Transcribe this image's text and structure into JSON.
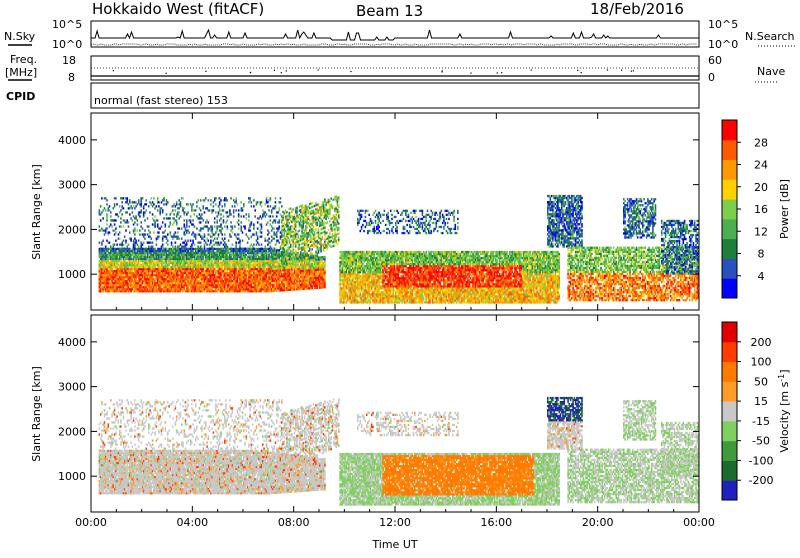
{
  "header": {
    "station": "Hokkaido West (fitACF)",
    "beam": "Beam 13",
    "date": "18/Feb/2016"
  },
  "strip": {
    "nsky_label": "N.Sky",
    "nsky_ticks": [
      "10^5",
      "10^0"
    ],
    "nsearch_label": "N.Search",
    "nsearch_ticks": [
      "10^5",
      "10^0"
    ],
    "freq_label_1": "Freq.",
    "freq_label_2": "[MHz]",
    "freq_ticks": [
      "18",
      "8"
    ],
    "nave_label": "Nave",
    "nave_ticks": [
      "60",
      "0"
    ],
    "cpid_label": "CPID",
    "cpid_text": "normal (fast stereo) 153"
  },
  "chart_data": [
    {
      "type": "heatmap",
      "name": "power",
      "ylabel": "Slant Range [km]",
      "xlabel": "Time UT",
      "x_range_hours": [
        0,
        24
      ],
      "y_range_km": [
        200,
        4600
      ],
      "y_ticks": [
        "4000",
        "3000",
        "2000",
        "1000"
      ],
      "x_ticks": [
        "00:00",
        "04:00",
        "08:00",
        "12:00",
        "16:00",
        "20:00",
        "00:00"
      ],
      "colorbar": {
        "label": "Power [dB]",
        "ticks": [
          "28",
          "24",
          "20",
          "16",
          "12",
          "8",
          "4"
        ],
        "colors": [
          "#0000ff",
          "#2a4fbf",
          "#1e7f3a",
          "#4caf50",
          "#7ccf4a",
          "#ffd000",
          "#ff9900",
          "#ff5a00",
          "#ff0000"
        ]
      }
    },
    {
      "type": "heatmap",
      "name": "velocity",
      "ylabel": "Slant Range [km]",
      "xlabel": "Time UT",
      "x_range_hours": [
        0,
        24
      ],
      "y_range_km": [
        200,
        4600
      ],
      "y_ticks": [
        "4000",
        "3000",
        "2000",
        "1000"
      ],
      "x_ticks": [
        "00:00",
        "04:00",
        "08:00",
        "12:00",
        "16:00",
        "20:00",
        "00:00"
      ],
      "colorbar": {
        "label": "Velocity [m s",
        "label_sup": "-1",
        "label_close": "]",
        "ticks": [
          "200",
          "100",
          "50",
          "15",
          "-15",
          "-50",
          "-100",
          "-200"
        ],
        "colors": [
          "#2020c0",
          "#1a6b2c",
          "#3f9a3a",
          "#7fd05f",
          "#c8c8c8",
          "#ff9d26",
          "#ff7a00",
          "#ff3b00",
          "#e00000"
        ]
      }
    }
  ]
}
